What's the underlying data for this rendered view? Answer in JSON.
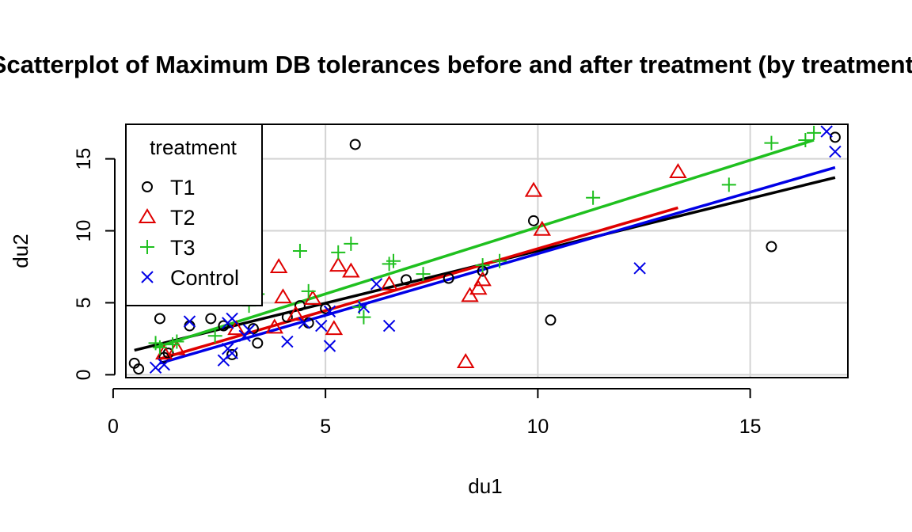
{
  "chart_data": {
    "type": "scatter",
    "title": "Scatterplot of Maximum DB tolerances before and after treatment (by treatment)",
    "xlabel": "du1",
    "ylabel": "du2",
    "xlim": [
      0.3,
      17.3
    ],
    "ylim": [
      -0.2,
      17.4
    ],
    "xticks": [
      0,
      5,
      10,
      15
    ],
    "yticks": [
      0,
      5,
      10,
      15
    ],
    "grid": true,
    "legend": {
      "title": "treatment",
      "placement": "top-left"
    },
    "series": [
      {
        "name": "T1",
        "marker": "circle",
        "color": "#000000",
        "points": [
          [
            0.5,
            0.8
          ],
          [
            0.6,
            0.4
          ],
          [
            1.1,
            3.9
          ],
          [
            1.2,
            1.2
          ],
          [
            1.3,
            1.5
          ],
          [
            1.8,
            3.4
          ],
          [
            2.3,
            3.9
          ],
          [
            2.6,
            3.4
          ],
          [
            2.8,
            1.4
          ],
          [
            3.3,
            3.2
          ],
          [
            3.4,
            2.2
          ],
          [
            4.1,
            4.0
          ],
          [
            4.4,
            4.8
          ],
          [
            4.6,
            3.6
          ],
          [
            5.0,
            4.6
          ],
          [
            5.7,
            16.0
          ],
          [
            6.9,
            6.6
          ],
          [
            7.9,
            6.7
          ],
          [
            8.7,
            7.2
          ],
          [
            9.9,
            10.7
          ],
          [
            10.3,
            3.8
          ],
          [
            15.5,
            8.9
          ],
          [
            17.0,
            16.5
          ]
        ],
        "fit": [
          [
            0.5,
            1.7
          ],
          [
            17.0,
            13.7
          ]
        ]
      },
      {
        "name": "T2",
        "marker": "triangle",
        "color": "#df0000",
        "points": [
          [
            1.2,
            1.5
          ],
          [
            1.5,
            1.8
          ],
          [
            2.9,
            3.2
          ],
          [
            3.8,
            3.3
          ],
          [
            3.9,
            7.5
          ],
          [
            4.0,
            5.4
          ],
          [
            4.3,
            4.2
          ],
          [
            4.7,
            5.3
          ],
          [
            5.2,
            3.2
          ],
          [
            5.3,
            7.6
          ],
          [
            5.6,
            7.2
          ],
          [
            6.5,
            6.3
          ],
          [
            8.3,
            0.9
          ],
          [
            8.4,
            5.5
          ],
          [
            8.6,
            6.0
          ],
          [
            8.7,
            6.6
          ],
          [
            9.9,
            12.8
          ],
          [
            10.1,
            10.1
          ],
          [
            13.3,
            14.1
          ]
        ],
        "fit": [
          [
            1.1,
            1.1
          ],
          [
            13.3,
            11.6
          ]
        ]
      },
      {
        "name": "T3",
        "marker": "plus",
        "color": "#1fc01f",
        "points": [
          [
            1.0,
            2.2
          ],
          [
            1.1,
            1.9
          ],
          [
            1.4,
            2.1
          ],
          [
            1.5,
            2.3
          ],
          [
            2.4,
            2.7
          ],
          [
            3.2,
            4.8
          ],
          [
            3.4,
            5.6
          ],
          [
            4.4,
            8.6
          ],
          [
            4.6,
            5.8
          ],
          [
            5.3,
            8.5
          ],
          [
            5.6,
            9.1
          ],
          [
            5.8,
            4.7
          ],
          [
            5.9,
            4.0
          ],
          [
            6.5,
            7.7
          ],
          [
            6.6,
            7.9
          ],
          [
            7.3,
            7.0
          ],
          [
            8.7,
            7.6
          ],
          [
            9.1,
            7.9
          ],
          [
            11.3,
            12.3
          ],
          [
            14.5,
            13.2
          ],
          [
            15.5,
            16.1
          ],
          [
            16.3,
            16.3
          ],
          [
            16.5,
            16.8
          ]
        ],
        "fit": [
          [
            1.0,
            1.9
          ],
          [
            16.5,
            16.3
          ]
        ]
      },
      {
        "name": "Control",
        "marker": "x",
        "color": "#0000e6",
        "points": [
          [
            1.0,
            0.5
          ],
          [
            1.2,
            0.7
          ],
          [
            1.8,
            3.7
          ],
          [
            2.6,
            1.0
          ],
          [
            2.7,
            1.8
          ],
          [
            2.7,
            3.6
          ],
          [
            2.8,
            1.5
          ],
          [
            2.8,
            3.9
          ],
          [
            3.1,
            2.7
          ],
          [
            3.2,
            3.1
          ],
          [
            4.1,
            2.3
          ],
          [
            4.5,
            3.6
          ],
          [
            4.9,
            3.4
          ],
          [
            5.1,
            2.0
          ],
          [
            5.1,
            4.4
          ],
          [
            5.9,
            4.7
          ],
          [
            6.2,
            6.3
          ],
          [
            6.5,
            3.4
          ],
          [
            12.4,
            7.4
          ],
          [
            16.8,
            16.9
          ],
          [
            17.0,
            15.5
          ]
        ],
        "fit": [
          [
            1.1,
            0.8
          ],
          [
            17.0,
            14.4
          ]
        ]
      }
    ]
  }
}
